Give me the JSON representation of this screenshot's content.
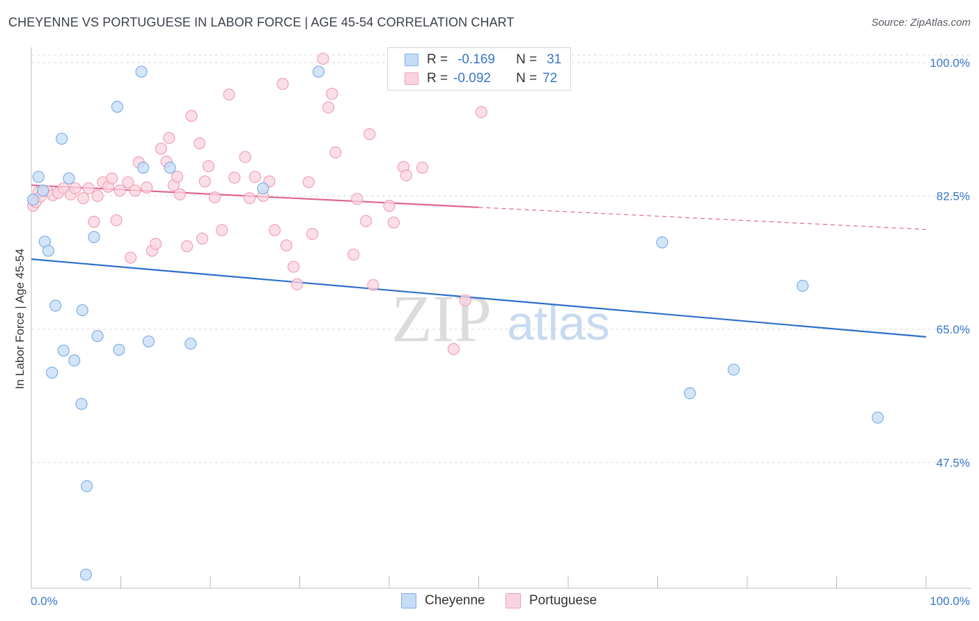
{
  "header": {
    "title": "CHEYENNE VS PORTUGUESE IN LABOR FORCE | AGE 45-54 CORRELATION CHART",
    "source": "Source: ZipAtlas.com"
  },
  "watermark": {
    "zip": "ZIP",
    "atlas": "atlas"
  },
  "legend": {
    "rows": [
      {
        "r_label": "R =",
        "r_value": "-0.169",
        "n_label": "N =",
        "n_value": "31"
      },
      {
        "r_label": "R =",
        "r_value": "-0.092",
        "n_label": "N =",
        "n_value": "72"
      }
    ]
  },
  "chart_data": {
    "type": "scatter",
    "title": "CHEYENNE VS PORTUGUESE IN LABOR FORCE | AGE 45-54 CORRELATION CHART",
    "xlabel": "",
    "ylabel": "In Labor Force | Age 45-54",
    "xlim": [
      0,
      100
    ],
    "ylim": [
      31,
      102
    ],
    "x_tick_labels": [
      "0.0%",
      "100.0%"
    ],
    "y_ticks": [
      47.5,
      65.0,
      82.5,
      100.0
    ],
    "y_tick_labels": [
      "47.5%",
      "65.0%",
      "82.5%",
      "100.0%"
    ],
    "grid": true,
    "legend_position": "bottom-center",
    "series": [
      {
        "name": "Cheyenne",
        "color": "#7eaee8",
        "fill": "#c5dcf5",
        "line_color": "#2f6fcb",
        "trend": {
          "x0": 0,
          "y0": 74.2,
          "x1": 100,
          "y1": 64.0,
          "solid_to": 100
        },
        "x": [
          0.2,
          0.8,
          1.3,
          1.5,
          1.9,
          2.3,
          2.7,
          3.4,
          3.6,
          4.2,
          4.8,
          5.6,
          5.7,
          6.2,
          7.0,
          7.4,
          9.6,
          9.8,
          12.3,
          12.5,
          13.1,
          15.5,
          17.8,
          25.9,
          32.1,
          70.5,
          73.6,
          78.5,
          86.2,
          94.6,
          6.1
        ],
        "y": [
          82.0,
          85.0,
          83.2,
          76.5,
          75.3,
          59.3,
          68.1,
          90.0,
          62.2,
          84.8,
          60.9,
          55.2,
          67.5,
          44.4,
          77.1,
          64.1,
          94.2,
          62.3,
          98.8,
          86.2,
          63.4,
          86.2,
          63.1,
          83.5,
          98.8,
          76.4,
          56.6,
          59.7,
          70.7,
          53.4,
          32.8
        ]
      },
      {
        "name": "Portuguese",
        "color": "#f0a0b8",
        "fill": "#f9d4df",
        "line_color": "#e2658f",
        "trend": {
          "x0": 0,
          "y0": 83.9,
          "x1": 100,
          "y1": 78.1,
          "solid_to": 50
        },
        "x": [
          0.2,
          0.5,
          0.8,
          1.0,
          1.3,
          1.8,
          2.4,
          3.0,
          3.6,
          4.4,
          4.9,
          5.8,
          6.4,
          7.0,
          7.4,
          8.0,
          8.6,
          9.0,
          9.5,
          9.9,
          10.8,
          11.1,
          11.6,
          12.0,
          12.9,
          13.5,
          13.9,
          14.5,
          15.1,
          15.4,
          15.9,
          16.3,
          16.6,
          17.4,
          17.9,
          18.8,
          19.1,
          19.4,
          19.8,
          20.5,
          21.3,
          22.1,
          22.7,
          23.9,
          24.4,
          25.0,
          25.9,
          26.6,
          27.2,
          28.1,
          28.5,
          29.3,
          29.7,
          31.0,
          31.4,
          32.6,
          33.2,
          33.6,
          34.0,
          36.0,
          36.4,
          37.4,
          37.8,
          38.2,
          40.0,
          40.5,
          41.6,
          41.9,
          43.7,
          47.2,
          48.5,
          50.3
        ],
        "y": [
          81.2,
          81.7,
          83.0,
          82.4,
          83.2,
          83.1,
          82.6,
          82.9,
          83.5,
          82.7,
          83.5,
          82.2,
          83.5,
          79.1,
          82.5,
          84.3,
          83.7,
          84.8,
          79.3,
          83.2,
          84.3,
          74.4,
          83.2,
          86.9,
          83.6,
          75.3,
          76.2,
          88.7,
          87.0,
          90.1,
          83.9,
          85.0,
          82.7,
          75.9,
          93.0,
          89.4,
          76.9,
          84.4,
          86.4,
          82.3,
          78.0,
          95.8,
          84.9,
          87.6,
          82.2,
          85.0,
          82.5,
          84.4,
          78.0,
          97.2,
          76.0,
          73.2,
          70.9,
          84.3,
          77.5,
          100.5,
          94.1,
          95.9,
          88.2,
          74.8,
          82.1,
          79.2,
          90.6,
          70.8,
          81.2,
          79.0,
          86.3,
          85.2,
          86.2,
          62.4,
          68.8,
          93.5
        ]
      }
    ]
  },
  "bottom_legend": {
    "items": [
      {
        "label": "Cheyenne"
      },
      {
        "label": "Portuguese"
      }
    ]
  }
}
